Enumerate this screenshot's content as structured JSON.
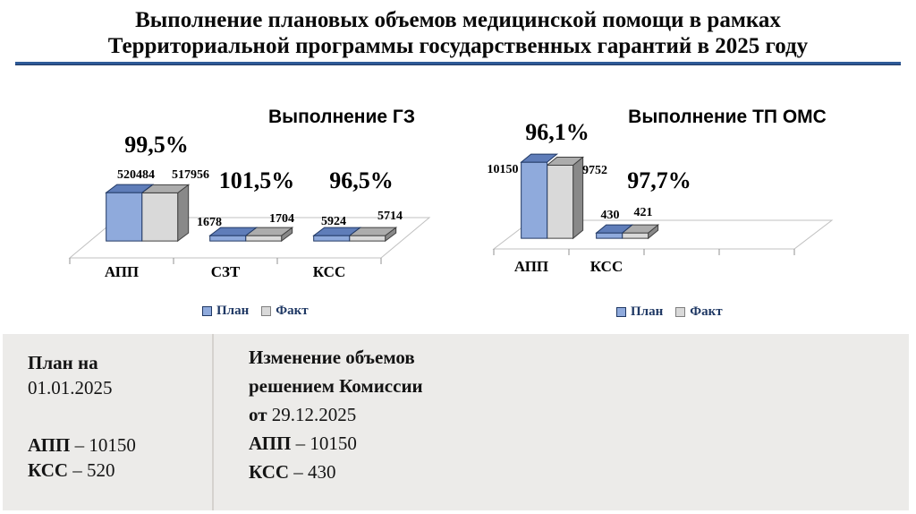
{
  "slide_title": {
    "line1": "Выполнение плановых объемов медицинской помощи в рамках",
    "line2": "Территориальной программы государственных гарантий в 2025 году"
  },
  "chart_data": [
    {
      "type": "bar",
      "title": "Выполнение ГЗ",
      "categories": [
        "АПП",
        "СЗТ",
        "КСС"
      ],
      "series": [
        {
          "name": "План",
          "values": [
            520484,
            1678,
            5924
          ]
        },
        {
          "name": "Факт",
          "values": [
            517956,
            1704,
            5714
          ]
        }
      ],
      "value_labels": [
        [
          "520484",
          "517956"
        ],
        [
          "1678",
          "1704"
        ],
        [
          "5924",
          "5714"
        ]
      ],
      "percent_labels": [
        "99,5%",
        "101,5%",
        "96,5%"
      ],
      "legend": [
        "План",
        "Факт"
      ],
      "legend_position": "bottom",
      "grid": false,
      "xlabel": "",
      "ylabel": ""
    },
    {
      "type": "bar",
      "title": "Выполнение ТП ОМС",
      "categories": [
        "АПП",
        "КСС"
      ],
      "series": [
        {
          "name": "План",
          "values": [
            10150,
            430
          ]
        },
        {
          "name": "Факт",
          "values": [
            9752,
            421
          ]
        }
      ],
      "value_labels": [
        [
          "10150",
          "9752"
        ],
        [
          "430",
          "421"
        ]
      ],
      "percent_labels": [
        "96,1%",
        "97,7%"
      ],
      "legend": [
        "План",
        "Факт"
      ],
      "legend_position": "bottom",
      "grid": false,
      "xlabel": "",
      "ylabel": ""
    }
  ],
  "footer": {
    "left": {
      "heading": "План на",
      "date": "01.01.2025",
      "app_label": "АПП",
      "app_value": "– 10150",
      "kss_label": "КСС",
      "kss_value": "– 520"
    },
    "right": {
      "heading_line1": "Изменение объемов",
      "heading_line2": "решением Комиссии",
      "date_prefix": "от",
      "date": "29.12.2025",
      "app_label": "АПП",
      "app_value": "– 10150",
      "kss_label": "КСС",
      "kss_value": "– 430"
    }
  },
  "colors": {
    "title_rule": "#2E5A97",
    "plan_front": "#8FAADC",
    "plan_top": "#5F7DB9",
    "plan_border": "#203864",
    "fact_front": "#D9D9D9",
    "fact_top": "#ACACAC",
    "fact_side": "#898989",
    "fact_border": "#404040",
    "floor_stroke": "#C0C0C0",
    "tick": "#909090",
    "legend_text": "#1F3864",
    "footer_bg": "#ECEBE9"
  }
}
